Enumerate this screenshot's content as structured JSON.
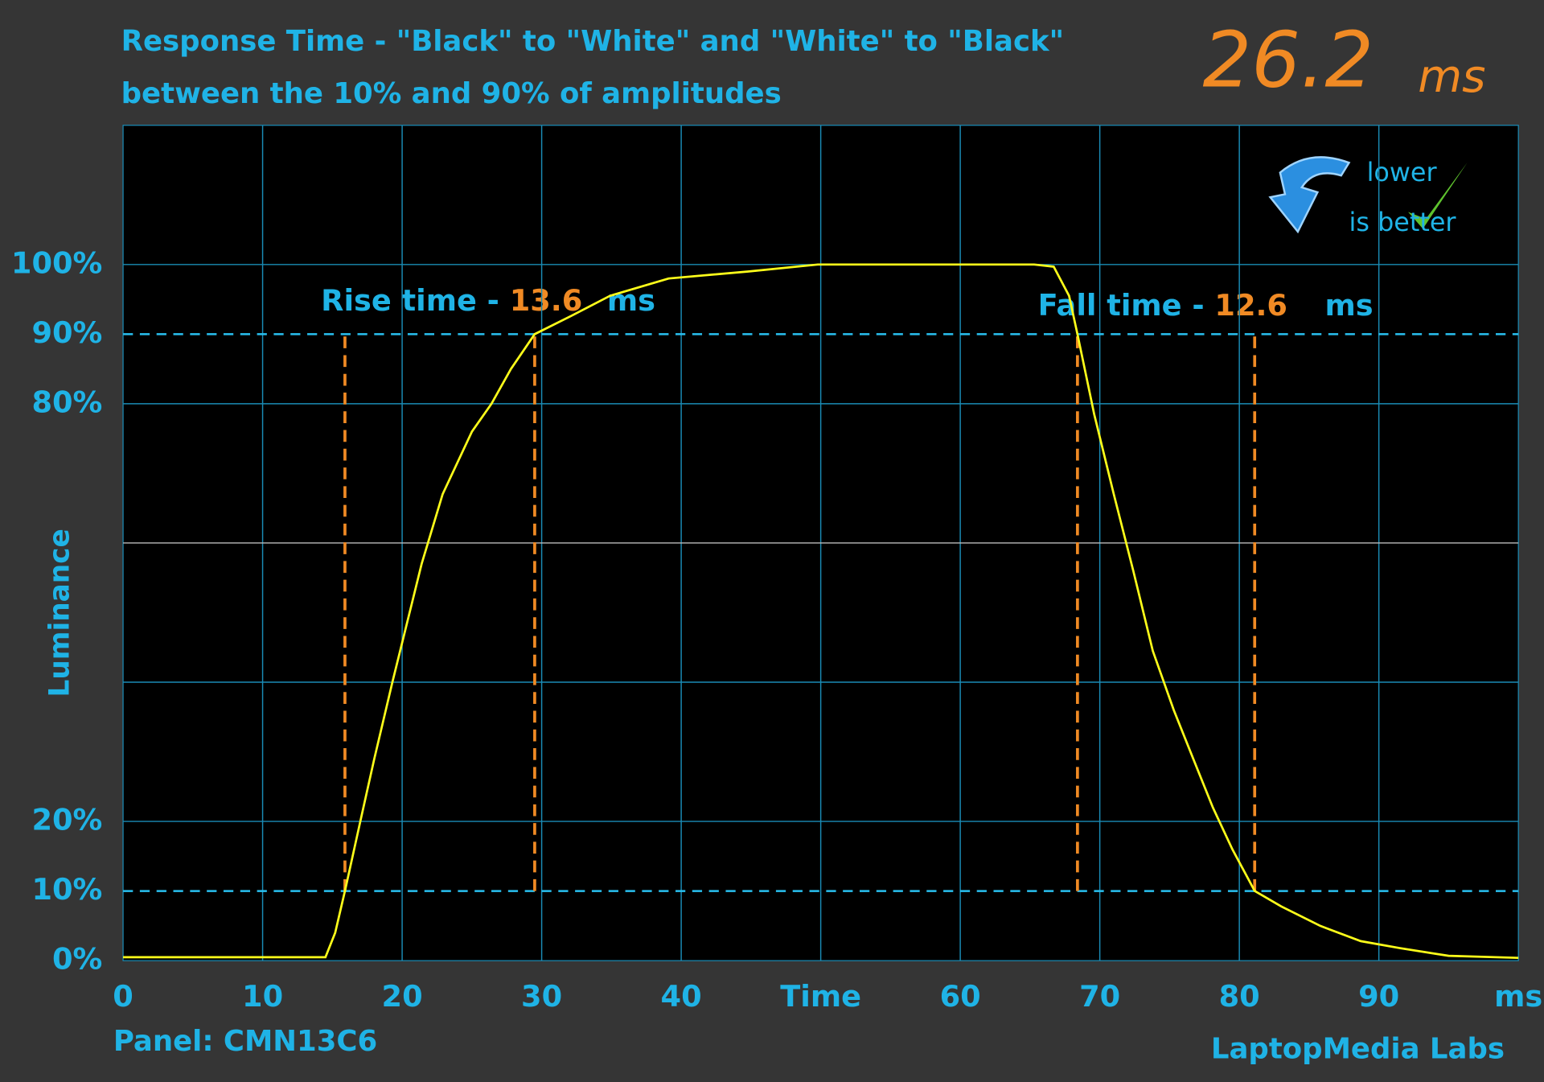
{
  "chart_data": {
    "type": "line",
    "title": "Response Time - \"Black\" to \"White\" and \"White\" to \"Black\"",
    "subtitle": "between the 10% and 90% of amplitudes",
    "ylabel": "Luminance",
    "readout_value": 26.2,
    "readout_unit": "ms",
    "rise_label": "Rise time - ",
    "rise_value": 13.6,
    "rise_unit": "ms",
    "fall_label": "Fall time - ",
    "fall_value": 12.6,
    "fall_unit": "ms",
    "hint_1": "lower",
    "hint_2": "is better",
    "panel": "Panel: CMN13C6",
    "credit": "LaptopMedia Labs",
    "color": "#ffff1a",
    "marker_color": "#f08a24",
    "xlim": [
      0,
      100
    ],
    "ylim": [
      0,
      120
    ],
    "xticks": [
      0,
      10,
      20,
      30,
      40,
      {
        "value": 50,
        "label": "Time"
      },
      60,
      70,
      80,
      90,
      {
        "value": 100,
        "label": "ms"
      }
    ],
    "yticks": [
      {
        "value": 0,
        "label": "0%"
      },
      {
        "value": 10,
        "label": "10%",
        "style": "dashed"
      },
      {
        "value": 20,
        "label": "20%"
      },
      {
        "value": 40,
        "label": null
      },
      {
        "value": 60,
        "label": null,
        "style": "center"
      },
      {
        "value": 80,
        "label": "80%"
      },
      {
        "value": 90,
        "label": "90%",
        "style": "dashed"
      },
      {
        "value": 100,
        "label": "100%"
      }
    ],
    "markers": [
      15.9,
      29.5,
      68.4,
      81.1
    ],
    "marker_span": [
      10,
      90
    ],
    "x": [
      0,
      5,
      10,
      14.5,
      15.2,
      15.9,
      17,
      18,
      19.3,
      21.4,
      22.9,
      25,
      26.4,
      27.8,
      29.5,
      32.1,
      34.9,
      39.1,
      44.8,
      49.8,
      55,
      61.8,
      65.3,
      66.7,
      67.8,
      68.4,
      69.6,
      71,
      72.4,
      73.8,
      75.3,
      76.7,
      78.1,
      79.5,
      81.1,
      83,
      85.8,
      88.7,
      91.5,
      95,
      100
    ],
    "values": [
      0.5,
      0.5,
      0.5,
      0.5,
      4,
      10,
      20,
      29,
      40,
      57,
      67,
      76,
      80,
      85,
      90,
      92.6,
      95.5,
      98,
      99,
      100,
      100,
      100,
      100,
      99.7,
      95.5,
      90,
      78.5,
      67,
      56,
      44.5,
      36,
      29,
      22,
      16,
      10,
      7.8,
      5,
      2.8,
      1.8,
      0.7,
      0.4
    ]
  }
}
